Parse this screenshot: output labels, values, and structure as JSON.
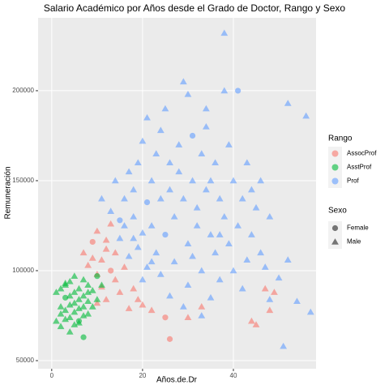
{
  "chart_data": {
    "type": "scatter",
    "title": "Salario Académico por Años desde el Grado de Doctor, Rango y Sexo",
    "x_label": "Años.de.Dr",
    "y_label": "Remuneración",
    "xlim": [
      -3,
      58.2
    ],
    "xticks": [
      0,
      20,
      40
    ],
    "ylim": [
      45500,
      240500
    ],
    "yticks": [
      50000,
      100000,
      150000,
      200000
    ],
    "grid": true,
    "legend_title": "Rango",
    "shape_legend": {
      "title": "Sexo",
      "items": [
        "Female",
        "Male"
      ]
    },
    "series": [
      {
        "name": "AssocProf",
        "color": "#F8766D",
        "x": [
          7,
          8,
          9,
          9,
          10,
          10,
          11,
          11,
          12,
          12,
          13,
          13,
          14,
          14,
          15,
          16,
          17,
          18,
          19,
          20,
          22,
          25,
          26,
          30,
          33,
          44,
          45,
          47,
          48,
          49,
          12,
          10
        ],
        "values": [
          110000,
          103000,
          107000,
          116000,
          98000,
          122000,
          91000,
          106000,
          117000,
          84000,
          126000,
          100000,
          95000,
          110000,
          88000,
          102000,
          79000,
          90000,
          84000,
          81000,
          78000,
          74000,
          62000,
          74000,
          80000,
          72000,
          70000,
          90000,
          78000,
          88000,
          112000,
          82000
        ],
        "sex": [
          "Male",
          "Male",
          "Male",
          "Female",
          "Male",
          "Male",
          "Male",
          "Male",
          "Male",
          "Male",
          "Male",
          "Female",
          "Male",
          "Male",
          "Male",
          "Male",
          "Male",
          "Male",
          "Male",
          "Male",
          "Male",
          "Female",
          "Female",
          "Male",
          "Male",
          "Male",
          "Male",
          "Male",
          "Male",
          "Male",
          "Male",
          "Male"
        ]
      },
      {
        "name": "AsstProf",
        "color": "#00BA38",
        "x": [
          1,
          1,
          2,
          2,
          2,
          3,
          3,
          3,
          3,
          4,
          4,
          4,
          4,
          5,
          5,
          5,
          5,
          6,
          6,
          6,
          6,
          7,
          7,
          7,
          7,
          8,
          8,
          8,
          9,
          9,
          10,
          10,
          11,
          2,
          3,
          4,
          5,
          6,
          7,
          8
        ],
        "values": [
          88000,
          72000,
          90000,
          80000,
          76000,
          92000,
          85000,
          78000,
          73000,
          94000,
          86000,
          81000,
          74000,
          88000,
          82000,
          77000,
          70000,
          90000,
          84000,
          79000,
          72000,
          86000,
          80000,
          75000,
          63000,
          92000,
          83000,
          76000,
          89000,
          80000,
          97000,
          84000,
          92000,
          69000,
          93000,
          66000,
          97000,
          71000,
          95000,
          88000
        ],
        "sex": [
          "Male",
          "Male",
          "Male",
          "Male",
          "Male",
          "Male",
          "Female",
          "Male",
          "Male",
          "Male",
          "Male",
          "Male",
          "Male",
          "Male",
          "Male",
          "Male",
          "Male",
          "Male",
          "Male",
          "Male",
          "Female",
          "Male",
          "Male",
          "Male",
          "Female",
          "Male",
          "Male",
          "Male",
          "Male",
          "Male",
          "Female",
          "Male",
          "Male",
          "Male",
          "Male",
          "Male",
          "Male",
          "Male",
          "Male",
          "Male"
        ]
      },
      {
        "name": "Prof",
        "color": "#619CFF",
        "x": [
          11,
          13,
          14,
          15,
          15,
          16,
          17,
          17,
          18,
          18,
          19,
          19,
          20,
          20,
          21,
          21,
          21,
          22,
          22,
          23,
          23,
          24,
          24,
          25,
          25,
          26,
          26,
          27,
          27,
          28,
          28,
          29,
          29,
          30,
          30,
          31,
          31,
          32,
          32,
          33,
          33,
          34,
          34,
          35,
          35,
          36,
          36,
          37,
          37,
          38,
          38,
          39,
          39,
          40,
          40,
          41,
          41,
          42,
          42,
          43,
          44,
          45,
          46,
          46,
          47,
          48,
          50,
          52,
          54,
          56,
          57,
          52,
          51,
          33,
          29,
          30,
          38,
          34,
          24,
          20,
          26,
          43,
          48,
          37,
          22,
          18,
          16,
          35,
          31,
          44
        ],
        "values": [
          140000,
          133000,
          150000,
          118000,
          128000,
          140000,
          108000,
          155000,
          130000,
          145000,
          113000,
          160000,
          121000,
          172000,
          102000,
          138000,
          185000,
          150000,
          125000,
          110000,
          165000,
          140000,
          98000,
          190000,
          120000,
          145000,
          160000,
          105000,
          130000,
          155000,
          170000,
          140000,
          205000,
          115000,
          92000,
          150000,
          175000,
          135000,
          125000,
          165000,
          100000,
          145000,
          180000,
          120000,
          150000,
          110000,
          160000,
          140000,
          95000,
          232000,
          130000,
          170000,
          115000,
          150000,
          100000,
          125000,
          200000,
          140000,
          90000,
          160000,
          120000,
          135000,
          110000,
          150000,
          102000,
          130000,
          96000,
          106000,
          83000,
          186000,
          77000,
          193000,
          58000,
          75000,
          80000,
          198000,
          200000,
          190000,
          178000,
          95000,
          86000,
          106000,
          84000,
          120000,
          105000,
          118000,
          125000,
          85000,
          108000,
          145000
        ],
        "sex": [
          "Male",
          "Male",
          "Male",
          "Male",
          "Female",
          "Male",
          "Male",
          "Male",
          "Male",
          "Male",
          "Male",
          "Male",
          "Male",
          "Male",
          "Male",
          "Female",
          "Male",
          "Male",
          "Male",
          "Male",
          "Male",
          "Male",
          "Male",
          "Male",
          "Female",
          "Male",
          "Male",
          "Male",
          "Male",
          "Male",
          "Male",
          "Male",
          "Male",
          "Male",
          "Male",
          "Male",
          "Female",
          "Male",
          "Male",
          "Male",
          "Male",
          "Male",
          "Male",
          "Male",
          "Male",
          "Male",
          "Male",
          "Male",
          "Male",
          "Male",
          "Male",
          "Male",
          "Male",
          "Male",
          "Male",
          "Male",
          "Female",
          "Male",
          "Male",
          "Male",
          "Male",
          "Male",
          "Male",
          "Male",
          "Male",
          "Male",
          "Male",
          "Male",
          "Male",
          "Male",
          "Male",
          "Male",
          "Male",
          "Male",
          "Male",
          "Male",
          "Male",
          "Male",
          "Male",
          "Male",
          "Male",
          "Male",
          "Male",
          "Male",
          "Male",
          "Male",
          "Male",
          "Male",
          "Male",
          "Male"
        ]
      }
    ]
  }
}
